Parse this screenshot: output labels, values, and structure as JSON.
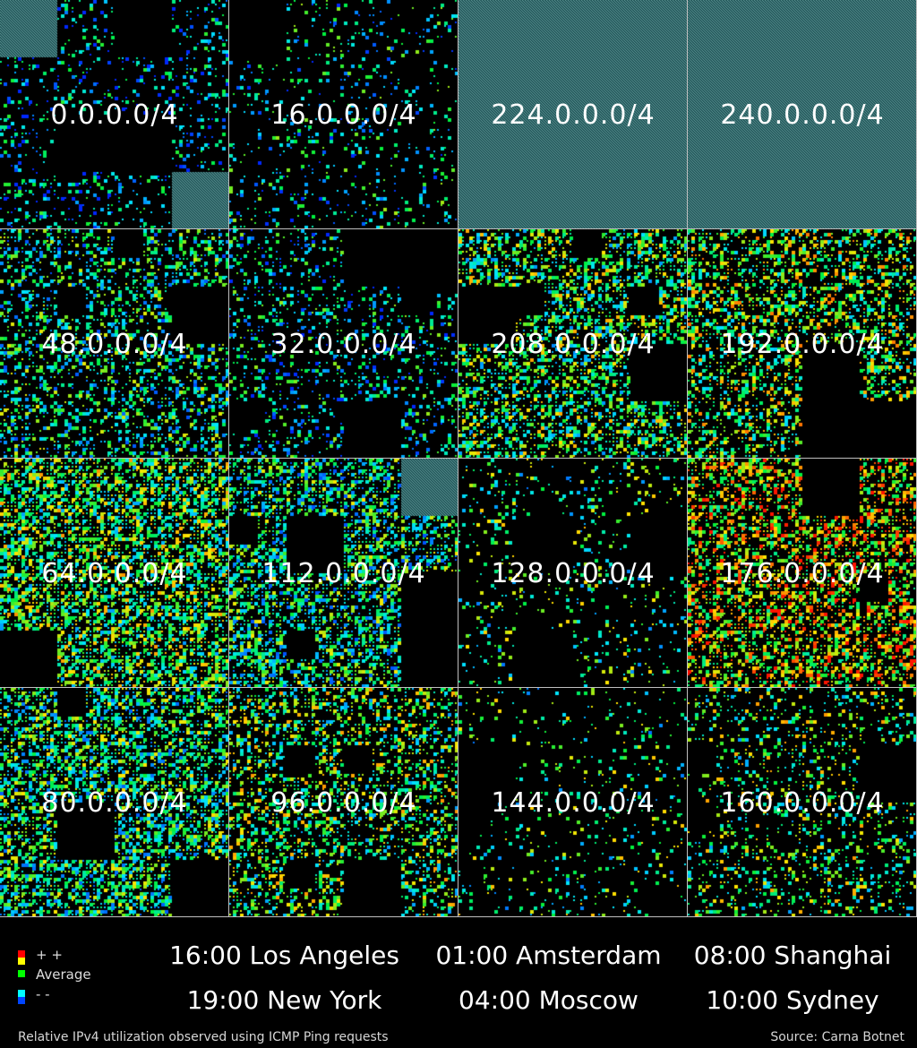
{
  "chart_data": {
    "type": "heatmap",
    "title": "",
    "color_scale": {
      "high": "#ff0000",
      "upper": "#ffff00",
      "average": "#00ff00",
      "lower": "#00ffff",
      "low": "#0000ff"
    },
    "unallocated_color": "#2c6e6e",
    "no_data_color": "#000000",
    "blocks": [
      {
        "label": "0.0.0.0/4",
        "density": 0.22,
        "mean": 0.22
      },
      {
        "label": "16.0.0.0/4",
        "density": 0.18,
        "mean": 0.32
      },
      {
        "label": "224.0.0.0/4",
        "density": 0.0,
        "mean": 0.5,
        "unallocated": true
      },
      {
        "label": "240.0.0.0/4",
        "density": 0.0,
        "mean": 0.5,
        "unallocated": true
      },
      {
        "label": "48.0.0.0/4",
        "density": 0.45,
        "mean": 0.38
      },
      {
        "label": "32.0.0.0/4",
        "density": 0.3,
        "mean": 0.3
      },
      {
        "label": "208.0.0.0/4",
        "density": 0.62,
        "mean": 0.48
      },
      {
        "label": "192.0.0.0/4",
        "density": 0.55,
        "mean": 0.55
      },
      {
        "label": "64.0.0.0/4",
        "density": 0.78,
        "mean": 0.5
      },
      {
        "label": "112.0.0.0/4",
        "density": 0.7,
        "mean": 0.4
      },
      {
        "label": "128.0.0.0/4",
        "density": 0.15,
        "mean": 0.45
      },
      {
        "label": "176.0.0.0/4",
        "density": 0.68,
        "mean": 0.7
      },
      {
        "label": "80.0.0.0/4",
        "density": 0.72,
        "mean": 0.42
      },
      {
        "label": "96.0.0.0/4",
        "density": 0.52,
        "mean": 0.5
      },
      {
        "label": "144.0.0.0/4",
        "density": 0.12,
        "mean": 0.45
      },
      {
        "label": "160.0.0.0/4",
        "density": 0.28,
        "mean": 0.5
      }
    ]
  },
  "legend": {
    "items": [
      {
        "label": "+ +",
        "color": "#ff0000"
      },
      {
        "label": "Average",
        "color": "#ffff00"
      },
      {
        "label": "",
        "color": "#00ff00"
      },
      {
        "label": "- -",
        "color": "#0000ff"
      }
    ]
  },
  "times": {
    "los_angeles": "16:00 Los Angeles",
    "amsterdam": "01:00 Amsterdam",
    "shanghai": "08:00 Shanghai",
    "new_york": "19:00 New York",
    "moscow": "04:00 Moscow",
    "sydney": "10:00 Sydney"
  },
  "footer": {
    "caption": "Relative IPv4 utilization observed using ICMP Ping requests",
    "source": "Source: Carna Botnet"
  }
}
